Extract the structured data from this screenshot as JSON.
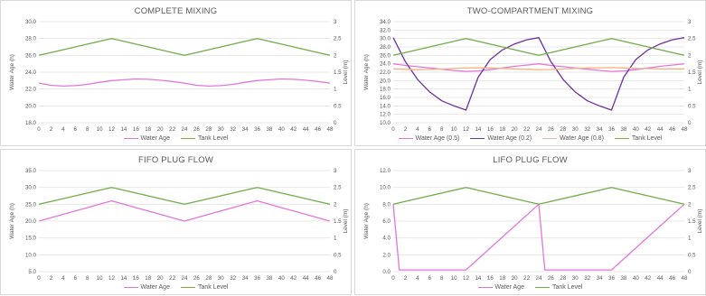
{
  "chart_data": [
    {
      "type": "line",
      "title": "COMPLETE MIXING",
      "ylabel": "Water Age (h)",
      "y2label": "Level (m)",
      "x": [
        0,
        2,
        4,
        6,
        8,
        10,
        12,
        14,
        16,
        18,
        20,
        22,
        24,
        26,
        28,
        30,
        32,
        34,
        36,
        38,
        40,
        42,
        44,
        46,
        48
      ],
      "x_ticks": [
        "0",
        "2",
        "4",
        "6",
        "8",
        "10",
        "12",
        "14",
        "16",
        "18",
        "20",
        "22",
        "24",
        "26",
        "28",
        "30",
        "32",
        "34",
        "36",
        "38",
        "40",
        "42",
        "44",
        "46",
        "48"
      ],
      "ylim": [
        18,
        30
      ],
      "y_ticks": [
        "18.0",
        "20.0",
        "22.0",
        "24.0",
        "26.0",
        "28.0",
        "30.0"
      ],
      "y2lim": [
        0,
        3
      ],
      "y2_ticks": [
        "0",
        "0.5",
        "1",
        "1.5",
        "2",
        "2.5",
        "3"
      ],
      "grid": true,
      "legend_position": "bottom",
      "series": [
        {
          "name": "Water Age",
          "axis": "left",
          "color": "#e377d9",
          "values": [
            22.7,
            22.45,
            22.35,
            22.4,
            22.55,
            22.8,
            23.0,
            23.1,
            23.2,
            23.15,
            23.05,
            22.9,
            22.7,
            22.45,
            22.35,
            22.4,
            22.55,
            22.8,
            23.0,
            23.1,
            23.2,
            23.15,
            23.05,
            22.9,
            22.7
          ]
        },
        {
          "name": "Tank Level",
          "axis": "right",
          "color": "#70ad47",
          "values": [
            2.0,
            2.083,
            2.167,
            2.25,
            2.333,
            2.417,
            2.5,
            2.417,
            2.333,
            2.25,
            2.167,
            2.083,
            2.0,
            2.083,
            2.167,
            2.25,
            2.333,
            2.417,
            2.5,
            2.417,
            2.333,
            2.25,
            2.167,
            2.083,
            2.0
          ]
        }
      ]
    },
    {
      "type": "line",
      "title": "TWO-COMPARTMENT MIXING",
      "ylabel": "Water Age (h)",
      "y2label": "Level (m)",
      "x": [
        0,
        2,
        4,
        6,
        8,
        10,
        12,
        14,
        16,
        18,
        20,
        22,
        24,
        26,
        28,
        30,
        32,
        34,
        36,
        38,
        40,
        42,
        44,
        46,
        48
      ],
      "x_ticks": [
        "0",
        "2",
        "4",
        "6",
        "8",
        "10",
        "12",
        "14",
        "16",
        "18",
        "20",
        "22",
        "24",
        "26",
        "28",
        "30",
        "32",
        "34",
        "36",
        "38",
        "40",
        "42",
        "44",
        "46",
        "48"
      ],
      "ylim": [
        10,
        34
      ],
      "y_ticks": [
        "10.0",
        "12.0",
        "14.0",
        "16.0",
        "18.0",
        "20.0",
        "22.0",
        "24.0",
        "26.0",
        "28.0",
        "30.0",
        "32.0",
        "34.0"
      ],
      "y2lim": [
        0,
        3
      ],
      "y2_ticks": [
        "0",
        "0.5",
        "1",
        "1.5",
        "2",
        "2.5",
        "3"
      ],
      "grid": true,
      "legend_position": "bottom",
      "series": [
        {
          "name": "Water Age (0.5)",
          "axis": "left",
          "color": "#e377d9",
          "values": [
            24.0,
            23.6,
            23.3,
            23.0,
            22.7,
            22.4,
            22.2,
            22.3,
            22.6,
            23.0,
            23.4,
            23.7,
            24.0,
            23.6,
            23.3,
            23.0,
            22.7,
            22.4,
            22.2,
            22.3,
            22.6,
            23.0,
            23.4,
            23.7,
            24.0
          ]
        },
        {
          "name": "Water Age (0.2)",
          "axis": "left",
          "color": "#7030a0",
          "values": [
            30.2,
            24.5,
            20.3,
            17.3,
            15.2,
            14.0,
            13.0,
            20.8,
            25.0,
            27.3,
            28.7,
            29.7,
            30.2,
            24.5,
            20.3,
            17.3,
            15.2,
            14.0,
            13.0,
            20.8,
            25.0,
            27.3,
            28.7,
            29.7,
            30.2
          ]
        },
        {
          "name": "Water Age (0.8)",
          "axis": "left",
          "color": "#f4b183",
          "values": [
            22.8,
            22.7,
            22.6,
            22.65,
            22.75,
            22.9,
            23.0,
            23.05,
            23.0,
            22.9,
            22.8,
            22.7,
            22.6,
            22.65,
            22.75,
            22.9,
            23.0,
            23.05,
            23.1,
            23.0,
            22.9,
            22.85,
            22.8,
            22.8,
            22.8
          ]
        },
        {
          "name": "Tank Level",
          "axis": "right",
          "color": "#70ad47",
          "values": [
            2.0,
            2.083,
            2.167,
            2.25,
            2.333,
            2.417,
            2.5,
            2.417,
            2.333,
            2.25,
            2.167,
            2.083,
            2.0,
            2.083,
            2.167,
            2.25,
            2.333,
            2.417,
            2.5,
            2.417,
            2.333,
            2.25,
            2.167,
            2.083,
            2.0
          ]
        }
      ]
    },
    {
      "type": "line",
      "title": "FIFO PLUG FLOW",
      "ylabel": "Water Age (h)",
      "y2label": "Level (m)",
      "x": [
        0,
        2,
        4,
        6,
        8,
        10,
        12,
        14,
        16,
        18,
        20,
        22,
        24,
        26,
        28,
        30,
        32,
        34,
        36,
        38,
        40,
        42,
        44,
        46,
        48
      ],
      "x_ticks": [
        "0",
        "2",
        "4",
        "6",
        "8",
        "10",
        "12",
        "14",
        "16",
        "18",
        "20",
        "22",
        "24",
        "26",
        "28",
        "30",
        "32",
        "34",
        "36",
        "38",
        "40",
        "42",
        "44",
        "46",
        "48"
      ],
      "ylim": [
        5,
        35
      ],
      "y_ticks": [
        "5.0",
        "10.0",
        "15.0",
        "20.0",
        "25.0",
        "30.0",
        "35.0"
      ],
      "y2lim": [
        0,
        3
      ],
      "y2_ticks": [
        "0",
        "0.5",
        "1",
        "1.5",
        "2",
        "2.5",
        "3"
      ],
      "grid": true,
      "legend_position": "bottom",
      "series": [
        {
          "name": "Water Age",
          "axis": "left",
          "color": "#e377d9",
          "values": [
            20.0,
            21.0,
            22.0,
            23.0,
            24.0,
            25.0,
            26.0,
            25.0,
            24.0,
            23.0,
            22.0,
            21.0,
            20.0,
            21.0,
            22.0,
            23.0,
            24.0,
            25.0,
            26.0,
            25.0,
            24.0,
            23.0,
            22.0,
            21.0,
            20.0
          ]
        },
        {
          "name": "Tank Level",
          "axis": "right",
          "color": "#70ad47",
          "values": [
            2.0,
            2.083,
            2.167,
            2.25,
            2.333,
            2.417,
            2.5,
            2.417,
            2.333,
            2.25,
            2.167,
            2.083,
            2.0,
            2.083,
            2.167,
            2.25,
            2.333,
            2.417,
            2.5,
            2.417,
            2.333,
            2.25,
            2.167,
            2.083,
            2.0
          ]
        }
      ]
    },
    {
      "type": "line",
      "title": "LIFO PLUG FLOW",
      "ylabel": "Water Age (h)",
      "y2label": "Level (m)",
      "x_ticks": [
        "0",
        "2",
        "4",
        "6",
        "8",
        "10",
        "12",
        "14",
        "16",
        "18",
        "20",
        "22",
        "24",
        "26",
        "28",
        "30",
        "32",
        "34",
        "36",
        "38",
        "40",
        "42",
        "44",
        "46",
        "48"
      ],
      "xlim": [
        0,
        48
      ],
      "ylim": [
        0,
        12
      ],
      "y_ticks": [
        "0.0",
        "2.0",
        "4.0",
        "6.0",
        "8.0",
        "10.0",
        "12.0"
      ],
      "y2lim": [
        0,
        3
      ],
      "y2_ticks": [
        "0",
        "0.5",
        "1",
        "1.5",
        "2",
        "2.5",
        "3"
      ],
      "grid": true,
      "legend_position": "bottom",
      "series": [
        {
          "name": "Water Age",
          "axis": "left",
          "color": "#e377d9",
          "x": [
            0,
            1,
            12,
            24,
            25,
            36,
            48
          ],
          "values": [
            8.0,
            0.2,
            0.2,
            8.0,
            0.2,
            0.2,
            8.0
          ]
        },
        {
          "name": "Tank Level",
          "axis": "right",
          "color": "#70ad47",
          "x": [
            0,
            12,
            24,
            36,
            48
          ],
          "values": [
            2.0,
            2.5,
            2.0,
            2.5,
            2.0
          ]
        }
      ]
    }
  ]
}
